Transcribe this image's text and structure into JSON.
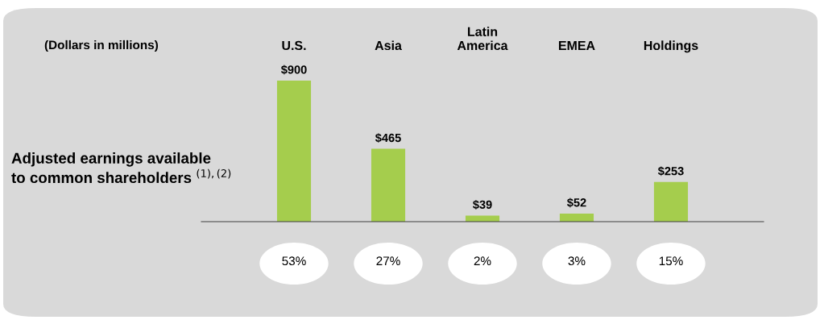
{
  "chart_data": {
    "type": "bar",
    "ylabel": "Adjusted earnings available to common shareholders $^{(1),(2)}$",
    "categories": [
      "U.S.",
      "Asia",
      "Latin America",
      "EMEA",
      "Holdings"
    ],
    "values": [
      900,
      465,
      39,
      52,
      253
    ],
    "value_labels": [
      "$900",
      "$465",
      "$39",
      "$52",
      "$253"
    ],
    "color": "#a5cd4d",
    "grid": false,
    "legend": false,
    "annotations": [
      "(Dollars in millions)",
      "53%",
      "27%",
      "2%",
      "3%",
      "15%"
    ]
  }
}
